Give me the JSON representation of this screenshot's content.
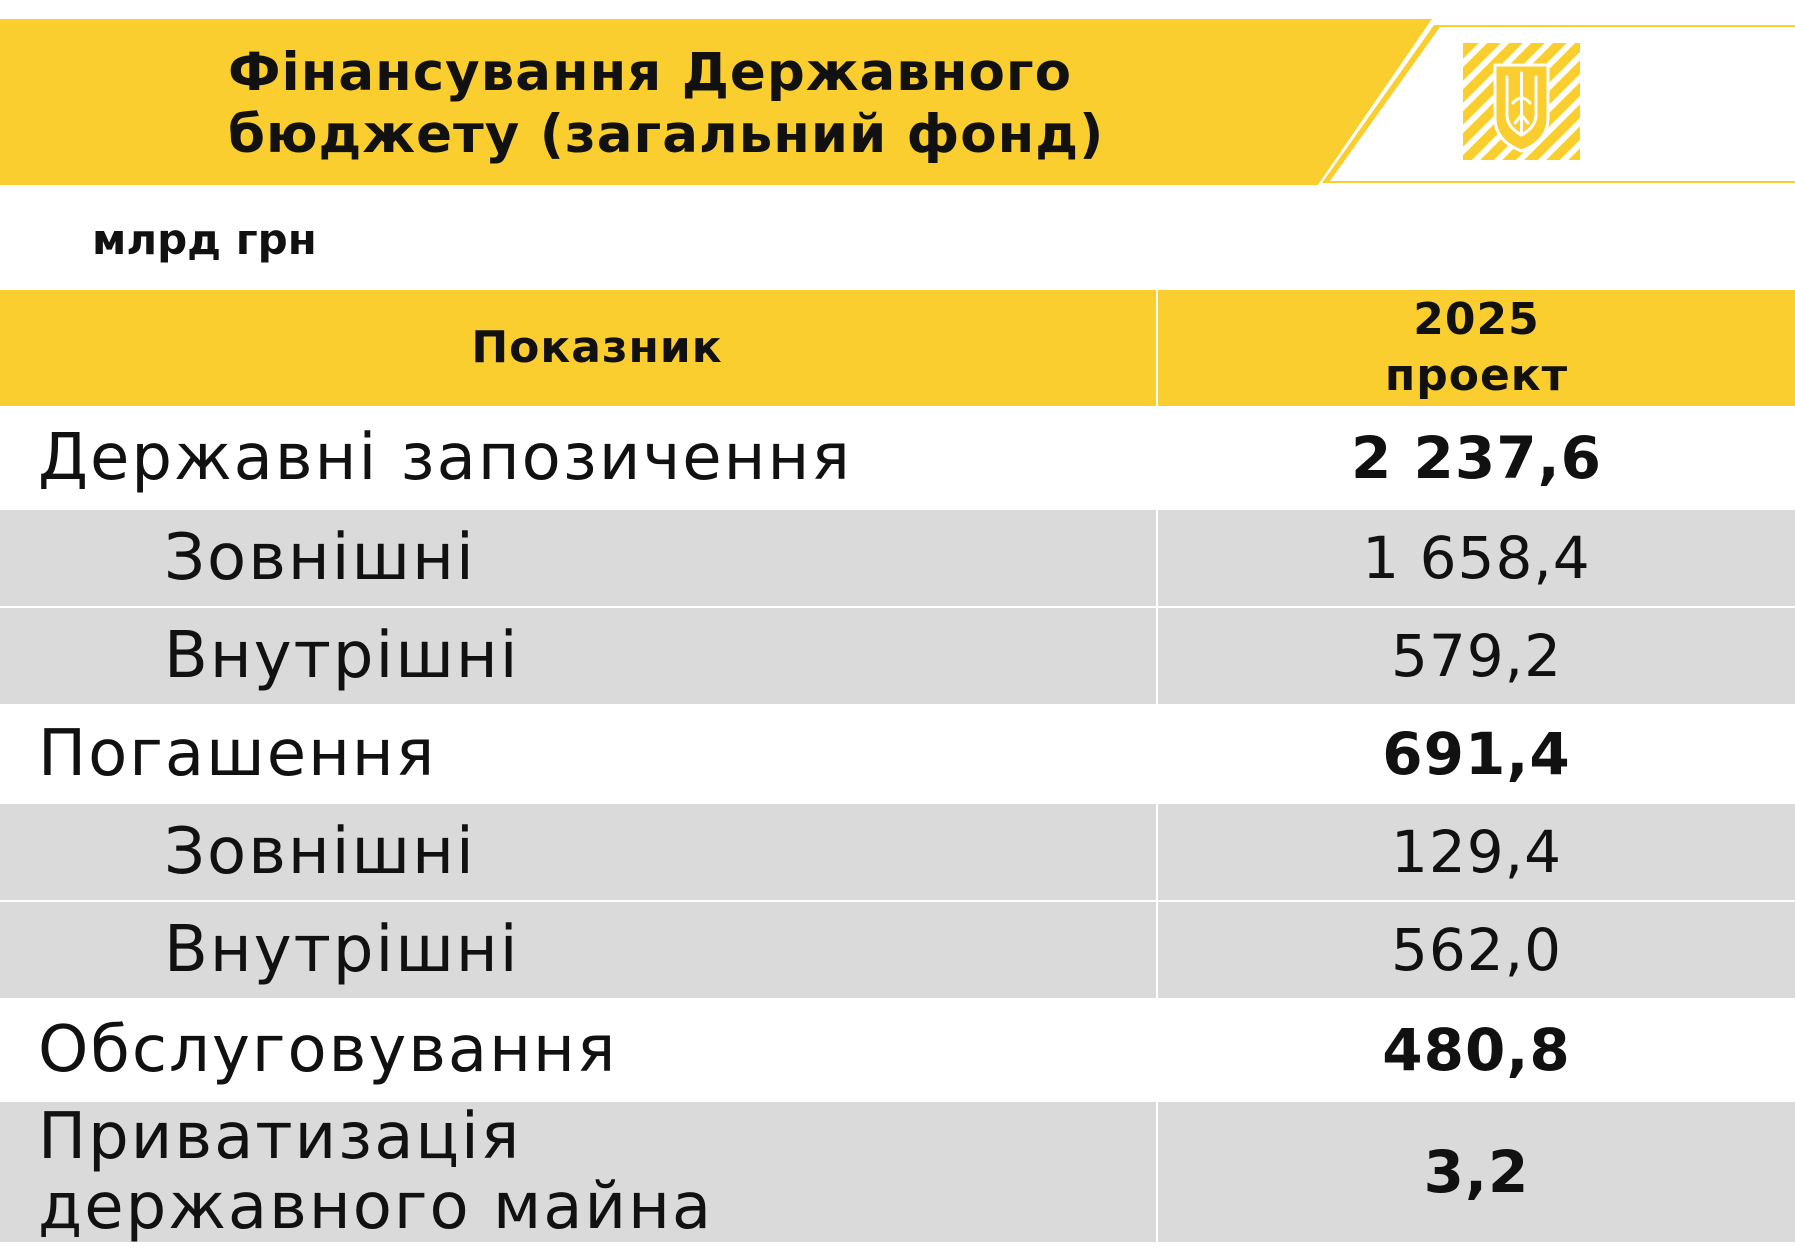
{
  "header": {
    "title_line1": "Фінансування Державного",
    "title_line2": "бюджету (загальний фонд)"
  },
  "units": "млрд грн",
  "table": {
    "col_indicator": "Показник",
    "col_year": "2025",
    "col_type": "проект",
    "rows": [
      {
        "label": "Державні запозичення",
        "value": "2 237,6"
      },
      {
        "label": "Зовнішні",
        "value": "1 658,4"
      },
      {
        "label": "Внутрішні",
        "value": "579,2"
      },
      {
        "label": "Погашення",
        "value": "691,4"
      },
      {
        "label": "Зовнішні",
        "value": "129,4"
      },
      {
        "label": "Внутрішні",
        "value": "562,0"
      },
      {
        "label": "Обслуговування",
        "value": "480,8"
      },
      {
        "label_line1": "Приватизація",
        "label_line2": "державного майна",
        "value": "3,2"
      }
    ]
  },
  "colors": {
    "accent_yellow": "#f9ce2e",
    "row_grey": "#dadada",
    "text": "#111111"
  },
  "icons": {
    "emblem": "ukraine-trident-emblem-icon"
  }
}
